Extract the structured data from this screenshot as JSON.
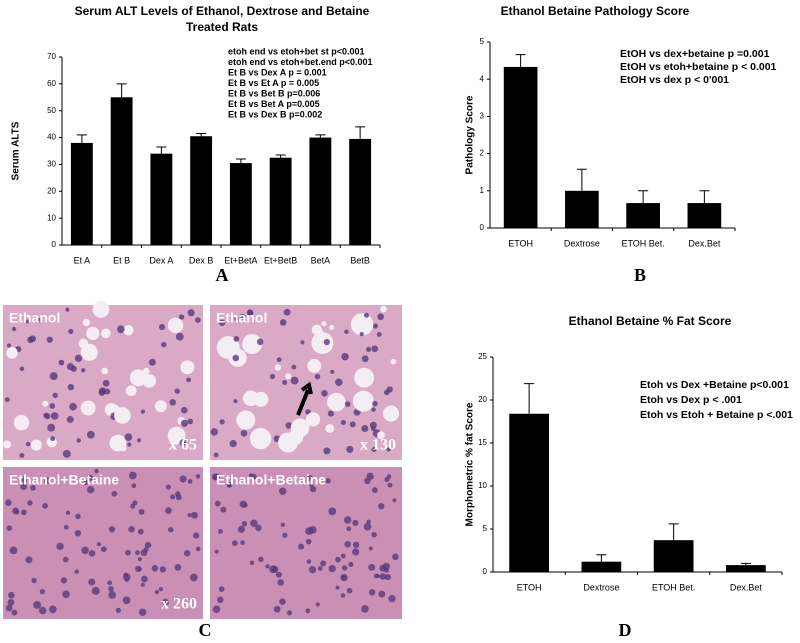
{
  "chart_data": [
    {
      "type": "bar",
      "title": [
        "Serum ALT Levels of Ethanol, Dextrose and Betaine",
        "Treated Rats"
      ],
      "ylabel": "Serum  ALTS",
      "categories": [
        "Et A",
        "Et B",
        "Dex A",
        "Dex B",
        "Et+BetA",
        "Et+BetB",
        "BetA",
        "BetB"
      ],
      "values": [
        38,
        55,
        34,
        40.5,
        30.5,
        32.5,
        40,
        39.5
      ],
      "errors": [
        3,
        5,
        2.5,
        1,
        1.5,
        1,
        1,
        4.5
      ],
      "color": "#000000",
      "ylim": [
        0,
        70
      ],
      "yticks": [
        0,
        10,
        20,
        30,
        40,
        50,
        60,
        70
      ],
      "annotations": [
        "etoh end vs etoh+bet st p<0.001",
        "etoh end vs etoh+bet.end p<0.001",
        "Et B vs Dex A p = 0.001",
        "Et B vs Et A p = 0.005",
        "Et B vs Bet B p=0.006",
        "Et B vs Bet A p=0.005",
        "Et B vs Dex B p=0.002"
      ]
    },
    {
      "type": "bar",
      "title": "Ethanol Betaine Pathology Score",
      "ylabel": "Pathology Score",
      "categories": [
        "ETOH",
        "Dextrose",
        "ETOH Bet.",
        "Dex.Bet"
      ],
      "values": [
        4.33,
        1,
        0.67,
        0.67
      ],
      "errors": [
        0.33,
        0.58,
        0.33,
        0.33
      ],
      "color": "#000000",
      "ylim": [
        0,
        5
      ],
      "yticks": [
        0,
        1,
        2,
        3,
        4,
        5
      ],
      "annotations": [
        "EtOH vs dex+betaine p =0.001",
        "EtOH vs etoh+betaine p < 0.001",
        "EtOH vs dex p < 0'001"
      ]
    },
    {
      "type": "bar",
      "title": "Ethanol Betaine % Fat Score",
      "ylabel": "Morphometric % fat Score",
      "categories": [
        "ETOH",
        "Dextrose",
        "ETOH Bet.",
        "Dex.Bet"
      ],
      "values": [
        18.4,
        1.2,
        3.7,
        0.8
      ],
      "errors": [
        3.5,
        0.8,
        1.9,
        0.2
      ],
      "color": "#000000",
      "ylim": [
        0,
        25
      ],
      "yticks": [
        0,
        5,
        10,
        15,
        20,
        25
      ],
      "annotations": [
        "Etoh vs Dex +Betaine p<0.001",
        "Etoh vs Dex p < .001",
        "Etoh vs Etoh + Betaine p <.001"
      ]
    }
  ],
  "panel_labels": [
    "A",
    "B",
    "C",
    "D"
  ],
  "micrographs": [
    {
      "label": "Ethanol",
      "magnification": "x 65"
    },
    {
      "label": "Ethanol",
      "magnification": "x 130"
    },
    {
      "label": "Ethanol+Betaine",
      "magnification": "x 260"
    },
    {
      "label": "Ethanol+Betaine"
    }
  ]
}
